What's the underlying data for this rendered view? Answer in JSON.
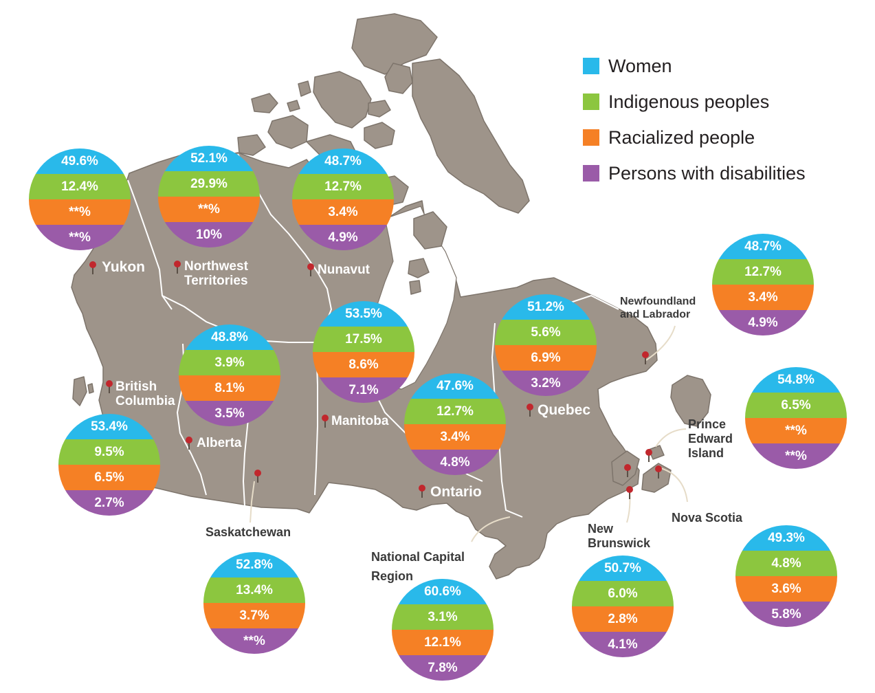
{
  "colors": {
    "women": "#29b9ea",
    "indigenous": "#8cc63f",
    "racialized": "#f58025",
    "disabilities": "#9a5ba8",
    "land": "#9e948a",
    "border": "#ffffff",
    "pin": "#c1272d"
  },
  "legend": [
    {
      "key": "women",
      "label": "Women"
    },
    {
      "key": "indigenous",
      "label": "Indigenous peoples"
    },
    {
      "key": "racialized",
      "label": "Racialized people"
    },
    {
      "key": "disabilities",
      "label": "Persons with disabilities"
    }
  ],
  "regions": [
    {
      "id": "yukon",
      "name": "Yukon",
      "values": {
        "women": "49.6%",
        "indigenous": "12.4%",
        "racialized": "**%",
        "disabilities": "**%"
      }
    },
    {
      "id": "nwt",
      "name": "Northwest\nTerritories",
      "values": {
        "women": "52.1%",
        "indigenous": "29.9%",
        "racialized": "**%",
        "disabilities": "10%"
      }
    },
    {
      "id": "nunavut",
      "name": "Nunavut",
      "values": {
        "women": "48.7%",
        "indigenous": "12.7%",
        "racialized": "3.4%",
        "disabilities": "4.9%"
      }
    },
    {
      "id": "bc",
      "name": "British\nColumbia",
      "values": {
        "women": "53.4%",
        "indigenous": "9.5%",
        "racialized": "6.5%",
        "disabilities": "2.7%"
      }
    },
    {
      "id": "alberta",
      "name": "Alberta",
      "values": {
        "women": "48.8%",
        "indigenous": "3.9%",
        "racialized": "8.1%",
        "disabilities": "3.5%"
      }
    },
    {
      "id": "manitoba",
      "name": "Manitoba",
      "values": {
        "women": "53.5%",
        "indigenous": "17.5%",
        "racialized": "8.6%",
        "disabilities": "7.1%"
      }
    },
    {
      "id": "saskatchewan",
      "name": "Saskatchewan",
      "values": {
        "women": "52.8%",
        "indigenous": "13.4%",
        "racialized": "3.7%",
        "disabilities": "**%"
      }
    },
    {
      "id": "ontario",
      "name": "Ontario",
      "values": {
        "women": "47.6%",
        "indigenous": "12.7%",
        "racialized": "3.4%",
        "disabilities": "4.8%"
      }
    },
    {
      "id": "ncr",
      "name": "National Capital\nRegion",
      "values": {
        "women": "60.6%",
        "indigenous": "3.1%",
        "racialized": "12.1%",
        "disabilities": "7.8%"
      }
    },
    {
      "id": "quebec",
      "name": "Quebec",
      "values": {
        "women": "51.2%",
        "indigenous": "5.6%",
        "racialized": "6.9%",
        "disabilities": "3.2%"
      }
    },
    {
      "id": "nl",
      "name": "Newfoundland\nand Labrador",
      "values": {
        "women": "48.7%",
        "indigenous": "12.7%",
        "racialized": "3.4%",
        "disabilities": "4.9%"
      }
    },
    {
      "id": "pei",
      "name": "Prince\nEdward\nIsland",
      "values": {
        "women": "54.8%",
        "indigenous": "6.5%",
        "racialized": "**%",
        "disabilities": "**%"
      }
    },
    {
      "id": "nb",
      "name": "New\nBrunswick",
      "values": {
        "women": "50.7%",
        "indigenous": "6.0%",
        "racialized": "2.8%",
        "disabilities": "4.1%"
      }
    },
    {
      "id": "ns",
      "name": "Nova Scotia",
      "values": {
        "women": "49.3%",
        "indigenous": "4.8%",
        "racialized": "3.6%",
        "disabilities": "5.8%"
      }
    }
  ]
}
